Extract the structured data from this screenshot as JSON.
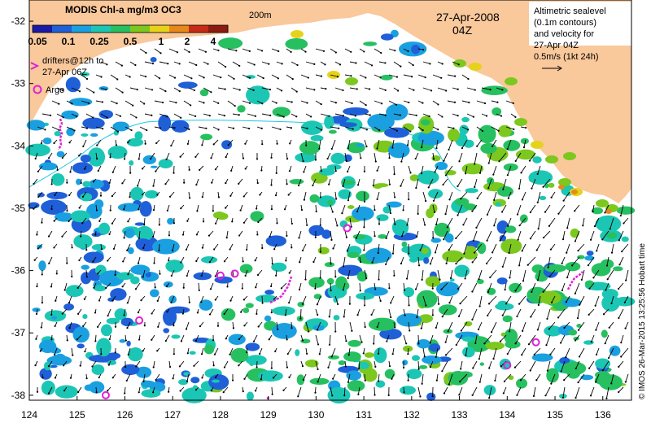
{
  "colorbar": {
    "title": "MODIS Chl-a mg/m3 OC3",
    "ticks": [
      "0.05",
      "0.1",
      "0.25",
      "0.5",
      "1",
      "2",
      "4"
    ],
    "colors": [
      "#1a1aa8",
      "#1f5fd8",
      "#1aa0e0",
      "#1cc6b4",
      "#26c060",
      "#7cc81e",
      "#e6d21a",
      "#e8881a",
      "#c82a18",
      "#8c1a10"
    ]
  },
  "depth_label": "200m",
  "date": "27-Apr-2008",
  "time": "04Z",
  "altimetry_note": [
    "Altimetric sealevel",
    "(0.1m contours)",
    "and velocity for",
    "27-Apr 04Z",
    "0.5m/s (1kt 24h)"
  ],
  "drifter_legend": [
    "drifters@12h to",
    "27-Apr 06Z"
  ],
  "argo_legend": "Argo",
  "x_ticks": [
    "124",
    "125",
    "126",
    "127",
    "128",
    "129",
    "130",
    "131",
    "132",
    "133",
    "134",
    "135",
    "136"
  ],
  "y_ticks": [
    "-32",
    "-33",
    "-34",
    "-35",
    "-36",
    "-37",
    "-38"
  ],
  "credit": "© IMOS 26-Mar-2015 13:25:56 Hobart time",
  "argo_floats": [
    [
      128.0,
      -36.08
    ],
    [
      128.3,
      -36.05
    ],
    [
      126.3,
      -36.8
    ],
    [
      130.65,
      -35.32
    ],
    [
      134.0,
      -37.52
    ],
    [
      134.6,
      -37.15
    ],
    [
      125.6,
      -38.0
    ]
  ],
  "colors": {
    "land": "#f9c89b",
    "drifter": "#e020d8",
    "argo": "#e020d8",
    "contour": "#20c8e8"
  }
}
